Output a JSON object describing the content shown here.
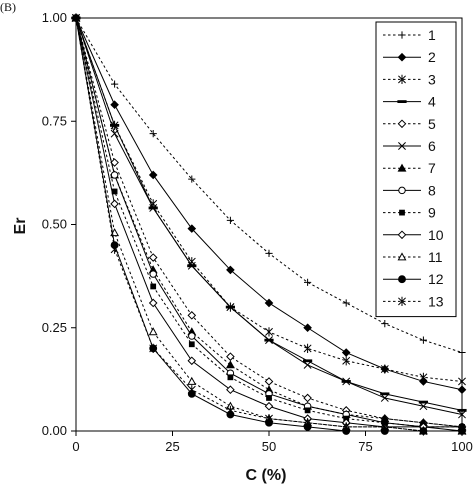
{
  "panel_label": "(B)",
  "chart_data": {
    "type": "line",
    "xlabel": "C (%)",
    "ylabel": "Er",
    "xlim": [
      0,
      100
    ],
    "ylim": [
      0,
      1
    ],
    "xticks": [
      0,
      25,
      50,
      75,
      100
    ],
    "yticks": [
      0.0,
      0.25,
      0.5,
      0.75,
      1.0
    ],
    "xtick_labels": [
      "0",
      "25",
      "50",
      "75",
      "100"
    ],
    "ytick_labels": [
      "0.00",
      "0.25",
      "0.50",
      "0.75",
      "1.00"
    ],
    "grid": false,
    "legend_position": "right",
    "series": [
      {
        "name": "1",
        "line": "dotted",
        "marker": "plus",
        "x": [
          0,
          10,
          20,
          30,
          40,
          50,
          60,
          70,
          80,
          90,
          100
        ],
        "y": [
          1.0,
          0.84,
          0.72,
          0.61,
          0.51,
          0.43,
          0.36,
          0.31,
          0.26,
          0.22,
          0.19
        ]
      },
      {
        "name": "2",
        "line": "solid",
        "marker": "diamond-filled",
        "x": [
          0,
          10,
          20,
          30,
          40,
          50,
          60,
          70,
          80,
          90,
          100
        ],
        "y": [
          1.0,
          0.79,
          0.62,
          0.49,
          0.39,
          0.31,
          0.25,
          0.19,
          0.15,
          0.12,
          0.1
        ]
      },
      {
        "name": "3",
        "line": "dotted",
        "marker": "asterisk",
        "x": [
          0,
          10,
          20,
          30,
          40,
          50,
          60,
          70,
          80,
          90,
          100
        ],
        "y": [
          1.0,
          0.74,
          0.55,
          0.41,
          0.3,
          0.24,
          0.2,
          0.17,
          0.15,
          0.13,
          0.12
        ]
      },
      {
        "name": "4",
        "line": "solid",
        "marker": "dash",
        "x": [
          0,
          10,
          20,
          30,
          40,
          50,
          60,
          70,
          80,
          90,
          100
        ],
        "y": [
          1.0,
          0.74,
          0.54,
          0.4,
          0.3,
          0.22,
          0.17,
          0.12,
          0.09,
          0.07,
          0.05
        ]
      },
      {
        "name": "5",
        "line": "dotted",
        "marker": "diamond-open",
        "x": [
          0,
          10,
          20,
          30,
          40,
          50,
          60,
          70,
          80,
          90,
          100
        ],
        "y": [
          1.0,
          0.65,
          0.42,
          0.28,
          0.18,
          0.12,
          0.08,
          0.05,
          0.03,
          0.02,
          0.01
        ]
      },
      {
        "name": "6",
        "line": "solid",
        "marker": "x",
        "x": [
          0,
          10,
          20,
          30,
          40,
          50,
          60,
          70,
          80,
          90,
          100
        ],
        "y": [
          1.0,
          0.72,
          0.54,
          0.4,
          0.3,
          0.22,
          0.16,
          0.12,
          0.08,
          0.06,
          0.04
        ]
      },
      {
        "name": "7",
        "line": "dotted",
        "marker": "triangle-filled",
        "x": [
          0,
          10,
          20,
          30,
          40,
          50,
          60,
          70,
          80,
          90,
          100
        ],
        "y": [
          1.0,
          0.62,
          0.39,
          0.24,
          0.16,
          0.1,
          0.06,
          0.04,
          0.03,
          0.02,
          0.01
        ]
      },
      {
        "name": "8",
        "line": "solid",
        "marker": "circle-open",
        "x": [
          0,
          10,
          20,
          30,
          40,
          50,
          60,
          70,
          80,
          90,
          100
        ],
        "y": [
          1.0,
          0.62,
          0.38,
          0.23,
          0.14,
          0.09,
          0.06,
          0.04,
          0.02,
          0.01,
          0.01
        ]
      },
      {
        "name": "9",
        "line": "dotted",
        "marker": "square-filled",
        "x": [
          0,
          10,
          20,
          30,
          40,
          50,
          60,
          70,
          80,
          90,
          100
        ],
        "y": [
          1.0,
          0.58,
          0.35,
          0.21,
          0.13,
          0.08,
          0.05,
          0.03,
          0.02,
          0.01,
          0.01
        ]
      },
      {
        "name": "10",
        "line": "solid",
        "marker": "diamond-open",
        "x": [
          0,
          10,
          20,
          30,
          40,
          50,
          60,
          70,
          80,
          90,
          100
        ],
        "y": [
          1.0,
          0.55,
          0.31,
          0.17,
          0.1,
          0.06,
          0.03,
          0.02,
          0.01,
          0.01,
          0.0
        ]
      },
      {
        "name": "11",
        "line": "dotted",
        "marker": "triangle-open",
        "x": [
          0,
          10,
          20,
          30,
          40,
          50,
          60,
          70,
          80,
          90,
          100
        ],
        "y": [
          1.0,
          0.48,
          0.24,
          0.12,
          0.06,
          0.03,
          0.02,
          0.01,
          0.01,
          0.0,
          0.0
        ]
      },
      {
        "name": "12",
        "line": "solid",
        "marker": "circle-filled",
        "x": [
          0,
          10,
          20,
          30,
          40,
          50,
          60,
          70,
          80,
          90,
          100
        ],
        "y": [
          1.0,
          0.45,
          0.2,
          0.09,
          0.04,
          0.02,
          0.01,
          0.0,
          0.0,
          0.0,
          0.0
        ]
      },
      {
        "name": "13",
        "line": "dotted",
        "marker": "asterisk",
        "x": [
          0,
          10,
          20,
          30,
          40,
          50,
          60,
          70,
          80,
          90,
          100
        ],
        "y": [
          1.0,
          0.44,
          0.2,
          0.1,
          0.05,
          0.03,
          0.02,
          0.01,
          0.01,
          0.0,
          0.0
        ]
      }
    ]
  }
}
